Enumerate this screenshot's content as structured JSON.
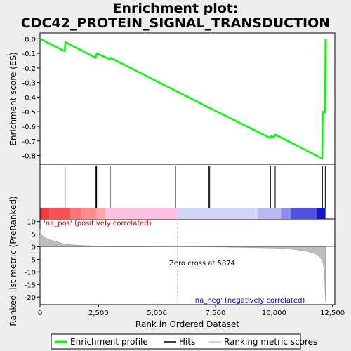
{
  "title_line1": "Enrichment plot:",
  "title_line2": "CDC42_PROTEIN_SIGNAL_TRANSDUCTION",
  "colors": {
    "enrichment_line": "#00ff00",
    "hit_line": "#000000",
    "ranking_fill": "#bebebe",
    "zero_cross_line": "#bebebe"
  },
  "chart_data": [
    {
      "type": "line",
      "name": "enrichment-profile",
      "ylabel": "Enrichment score (ES)",
      "xlim": [
        0,
        12600
      ],
      "ylim": [
        -0.86,
        0.04
      ],
      "yticks": [
        0.0,
        -0.1,
        -0.2,
        -0.3,
        -0.4,
        -0.5,
        -0.6,
        -0.7,
        -0.8
      ],
      "ytick_labels": [
        "0.0",
        "-0.1",
        "-0.2",
        "-0.3",
        "-0.4",
        "-0.5",
        "-0.6",
        "-0.7",
        "-0.8"
      ],
      "grid": false,
      "series": [
        {
          "x": [
            0,
            1060,
            1080,
            2380,
            2400,
            2420,
            2990,
            3010,
            5780,
            7200,
            7240,
            9840,
            9880,
            9960,
            10040,
            10060,
            12060,
            12080,
            12180,
            12200
          ],
          "y": [
            0.0,
            -0.085,
            -0.022,
            -0.13,
            -0.115,
            -0.1,
            -0.14,
            -0.13,
            -0.355,
            -0.47,
            -0.473,
            -0.68,
            -0.665,
            -0.675,
            -0.665,
            -0.657,
            -0.82,
            -0.5,
            -0.505,
            0.0
          ]
        }
      ]
    },
    {
      "type": "hits",
      "name": "gene-set-hits",
      "xlim": [
        0,
        12600
      ],
      "hit_ranks": [
        1070,
        2390,
        2410,
        2420,
        3000,
        5790,
        7210,
        7250,
        9850,
        10050,
        12070,
        12190
      ],
      "heat_strip": [
        {
          "from": 0,
          "to": 80,
          "color": "#cc0000"
        },
        {
          "from": 80,
          "to": 400,
          "color": "#f43c3c"
        },
        {
          "from": 400,
          "to": 1300,
          "color": "#ff5050"
        },
        {
          "from": 1300,
          "to": 1750,
          "color": "#ff7474"
        },
        {
          "from": 1750,
          "to": 2400,
          "color": "#ff8c8c"
        },
        {
          "from": 2400,
          "to": 2800,
          "color": "#ffa8a8"
        },
        {
          "from": 2800,
          "to": 5874,
          "color": "#ffc0e0"
        },
        {
          "from": 5874,
          "to": 9300,
          "color": "#d4d4f8"
        },
        {
          "from": 9300,
          "to": 10300,
          "color": "#b8b8f4"
        },
        {
          "from": 10300,
          "to": 10700,
          "color": "#8c8cf0"
        },
        {
          "from": 10700,
          "to": 11850,
          "color": "#5050e0"
        },
        {
          "from": 11850,
          "to": 12200,
          "color": "#1414c8"
        }
      ]
    },
    {
      "type": "area",
      "name": "ranked-list-metric",
      "xlabel": "Rank in Ordered Dataset",
      "ylabel": "Ranked list metric (PreRanked)",
      "xlim": [
        0,
        12600
      ],
      "ylim": [
        -23,
        11
      ],
      "xticks": [
        0,
        2500,
        5000,
        7500,
        10000,
        12500
      ],
      "xtick_labels": [
        "0",
        "2,500",
        "5,000",
        "7,500",
        "10,000",
        "12,500"
      ],
      "yticks": [
        10,
        5,
        0,
        -5,
        -10,
        -15,
        -20
      ],
      "ytick_labels": [
        "10",
        "5",
        "0",
        "-5",
        "-10",
        "-15",
        "-20"
      ],
      "x": [
        0,
        30,
        150,
        300,
        500,
        800,
        1000,
        1300,
        1800,
        2500,
        3500,
        4500,
        5874,
        7000,
        8500,
        9500,
        10000,
        10500,
        11000,
        11400,
        11700,
        11900,
        12000,
        12080,
        12150,
        12200
      ],
      "values": [
        7,
        5,
        4,
        3.2,
        2.5,
        1.8,
        1.2,
        0.8,
        0.5,
        0.3,
        0.1,
        0.02,
        0,
        -0.05,
        -0.2,
        -0.4,
        -0.5,
        -0.7,
        -1.2,
        -1.8,
        -2.5,
        -3.5,
        -4.5,
        -6,
        -9,
        -22
      ],
      "annotations": {
        "pos_label": "'na_pos' (positively correlated)",
        "neg_label": "'na_neg' (negatively correlated)",
        "zero_cross": "Zero cross at 5874",
        "zero_cross_rank": 5874
      }
    }
  ],
  "legend": {
    "enrichment": "Enrichment profile",
    "hits": "Hits",
    "ranking": "Ranking metric scores"
  }
}
